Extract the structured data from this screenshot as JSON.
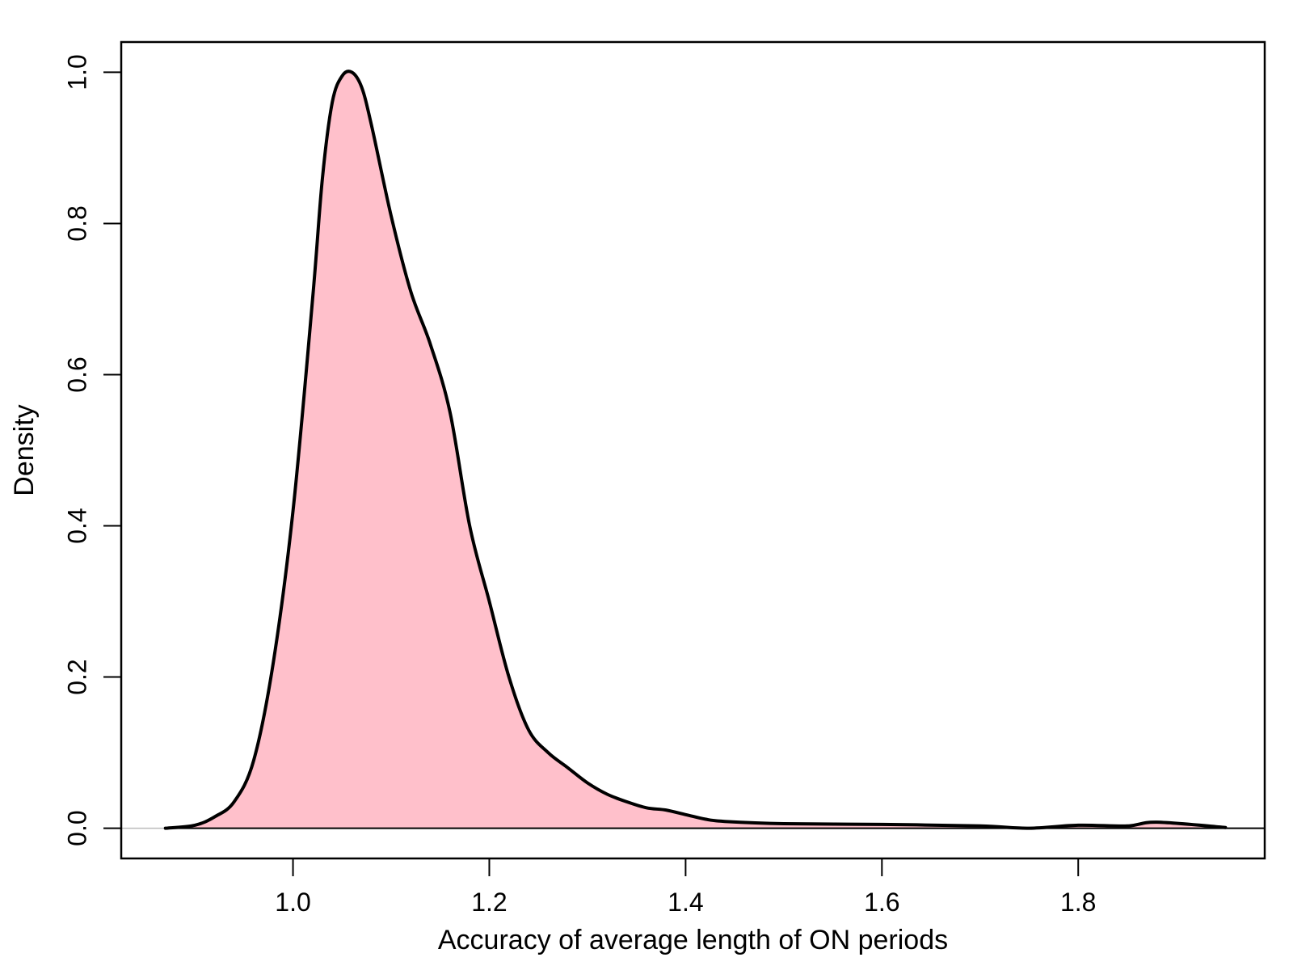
{
  "chart_data": {
    "type": "area",
    "title": "",
    "xlabel": "Accuracy of average length of ON periods",
    "ylabel": "Density",
    "xlim": [
      0.825,
      1.99
    ],
    "ylim": [
      -0.04,
      1.04
    ],
    "x_ticks": [
      1.0,
      1.2,
      1.4,
      1.6,
      1.8
    ],
    "x_tick_labels": [
      "1.0",
      "1.2",
      "1.4",
      "1.6",
      "1.8"
    ],
    "y_ticks": [
      0.0,
      0.2,
      0.4,
      0.6,
      0.8,
      1.0
    ],
    "y_tick_labels": [
      "0.0",
      "0.2",
      "0.4",
      "0.6",
      "0.8",
      "1.0"
    ],
    "grid": false,
    "baseline": 0,
    "fill_color": "#ffc0cb",
    "line_color": "#000000",
    "series": [
      {
        "x": [
          0.87,
          0.9,
          0.92,
          0.94,
          0.96,
          0.98,
          1.0,
          1.02,
          1.03,
          1.04,
          1.05,
          1.06,
          1.07,
          1.08,
          1.1,
          1.12,
          1.14,
          1.16,
          1.18,
          1.2,
          1.22,
          1.24,
          1.26,
          1.28,
          1.3,
          1.32,
          1.34,
          1.36,
          1.38,
          1.4,
          1.42,
          1.44,
          1.5,
          1.6,
          1.7,
          1.75,
          1.8,
          1.85,
          1.88,
          1.95
        ],
        "y": [
          0.0,
          0.004,
          0.015,
          0.035,
          0.09,
          0.22,
          0.42,
          0.7,
          0.86,
          0.96,
          0.995,
          1.0,
          0.98,
          0.93,
          0.81,
          0.71,
          0.64,
          0.55,
          0.4,
          0.3,
          0.2,
          0.13,
          0.1,
          0.08,
          0.06,
          0.045,
          0.035,
          0.027,
          0.024,
          0.018,
          0.012,
          0.009,
          0.006,
          0.005,
          0.003,
          0.0,
          0.004,
          0.003,
          0.008,
          0.001
        ]
      }
    ]
  }
}
